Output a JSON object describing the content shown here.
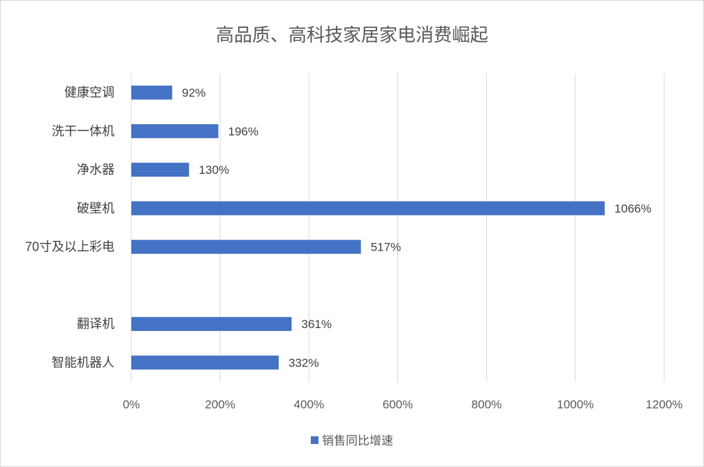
{
  "chart_data": {
    "type": "bar",
    "orientation": "horizontal",
    "title": "高品质、高科技家居家电消费崛起",
    "xlabel": "",
    "ylabel": "",
    "xlim": [
      0,
      1200
    ],
    "x_ticks": [
      "0%",
      "200%",
      "400%",
      "600%",
      "800%",
      "1000%",
      "1200%"
    ],
    "grid": true,
    "legend_position": "bottom",
    "colors": {
      "bar": "#4472C4"
    },
    "series": [
      {
        "name": "销售同比增速",
        "items": [
          {
            "category": "健康空调",
            "value": 92,
            "label": "92%"
          },
          {
            "category": "洗干一体机",
            "value": 196,
            "label": "196%"
          },
          {
            "category": "净水器",
            "value": 130,
            "label": "130%"
          },
          {
            "category": "破壁机",
            "value": 1066,
            "label": "1066%"
          },
          {
            "category": "70寸及以上彩电",
            "value": 517,
            "label": "517%"
          },
          {
            "category": "",
            "value": null,
            "label": ""
          },
          {
            "category": "翻译机",
            "value": 361,
            "label": "361%"
          },
          {
            "category": "智能机器人",
            "value": 332,
            "label": "332%"
          }
        ]
      }
    ]
  }
}
